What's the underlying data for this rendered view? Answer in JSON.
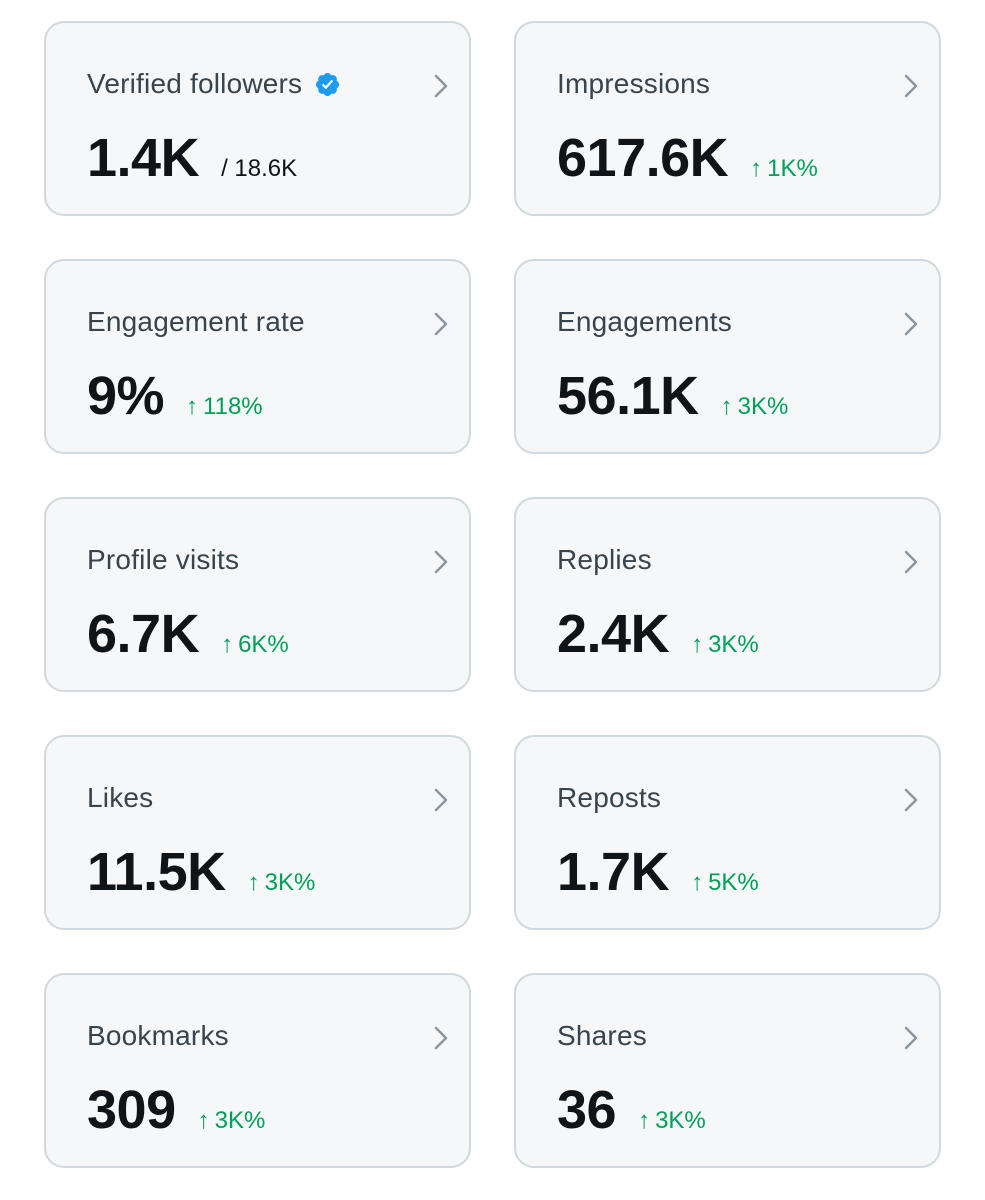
{
  "colors": {
    "card_background": "#f5f7f8",
    "card_border": "#cfd9de",
    "label_text": "#38444d",
    "value_text": "#0f1419",
    "positive_delta": "#00a05a",
    "verified_badge": "#1d9bf0",
    "chevron": "#8b98a5"
  },
  "icons": {
    "verified": "verified-badge-icon",
    "chevron": "chevron-right-icon",
    "delta_arrow": "arrow-up-icon"
  },
  "arrow_glyph": "↑",
  "metrics": [
    {
      "label": "Verified followers",
      "value": "1.4K",
      "sub": "/ 18.6K"
    },
    {
      "label": "Impressions",
      "value": "617.6K",
      "delta": "1K%"
    },
    {
      "label": "Engagement rate",
      "value": "9%",
      "delta": "118%"
    },
    {
      "label": "Engagements",
      "value": "56.1K",
      "delta": "3K%"
    },
    {
      "label": "Profile visits",
      "value": "6.7K",
      "delta": "6K%"
    },
    {
      "label": "Replies",
      "value": "2.4K",
      "delta": "3K%"
    },
    {
      "label": "Likes",
      "value": "11.5K",
      "delta": "3K%"
    },
    {
      "label": "Reposts",
      "value": "1.7K",
      "delta": "5K%"
    },
    {
      "label": "Bookmarks",
      "value": "309",
      "delta": "3K%"
    },
    {
      "label": "Shares",
      "value": "36",
      "delta": "3K%"
    }
  ]
}
